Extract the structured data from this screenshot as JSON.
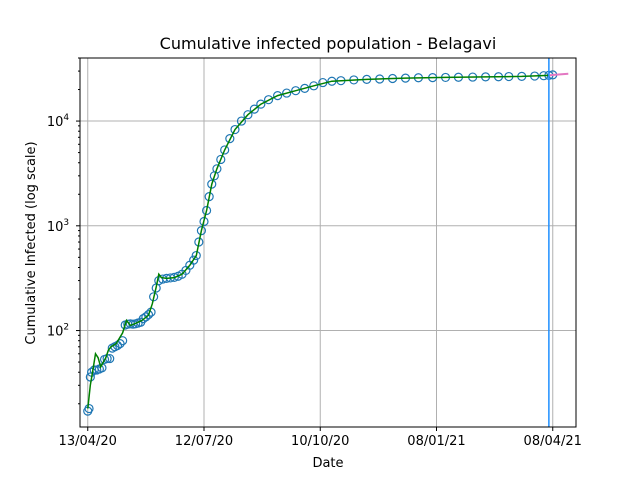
{
  "chart_data": {
    "type": "line",
    "title": "Cumulative infected population - Belagavi",
    "xlabel": "Date",
    "ylabel": "Cumulative Infected (log scale)",
    "yscale": "log",
    "ylim": [
      12,
      40000
    ],
    "xlim": [
      "2020-04-07",
      "2021-04-26"
    ],
    "x_ticks": [
      {
        "date": "2020-04-13",
        "label": "13/04/20"
      },
      {
        "date": "2020-07-12",
        "label": "12/07/20"
      },
      {
        "date": "2020-10-10",
        "label": "10/10/20"
      },
      {
        "date": "2021-01-08",
        "label": "08/01/21"
      },
      {
        "date": "2021-04-08",
        "label": "08/04/21"
      }
    ],
    "y_ticks": [
      {
        "value": 100,
        "base": "10",
        "exp": "2"
      },
      {
        "value": 1000,
        "base": "10",
        "exp": "3"
      },
      {
        "value": 10000,
        "base": "10",
        "exp": "4"
      }
    ],
    "grid": true,
    "vertical_marker": {
      "date": "2021-04-05",
      "color": "#1f8fff"
    },
    "colors": {
      "observed": "#1f77b4",
      "model": "#008000",
      "forecast": "#e377c2"
    },
    "series": [
      {
        "kind": "observed",
        "style": "open-circle",
        "points": [
          [
            "2020-04-13",
            17
          ],
          [
            "2020-04-14",
            18
          ],
          [
            "2020-04-15",
            36
          ],
          [
            "2020-04-16",
            40
          ],
          [
            "2020-04-18",
            42
          ],
          [
            "2020-04-20",
            42
          ],
          [
            "2020-04-22",
            43
          ],
          [
            "2020-04-24",
            44
          ],
          [
            "2020-04-26",
            53
          ],
          [
            "2020-04-28",
            54
          ],
          [
            "2020-04-30",
            54
          ],
          [
            "2020-05-02",
            68
          ],
          [
            "2020-05-04",
            70
          ],
          [
            "2020-05-06",
            72
          ],
          [
            "2020-05-08",
            75
          ],
          [
            "2020-05-10",
            80
          ],
          [
            "2020-05-12",
            113
          ],
          [
            "2020-05-14",
            115
          ],
          [
            "2020-05-16",
            116
          ],
          [
            "2020-05-18",
            115
          ],
          [
            "2020-05-20",
            116
          ],
          [
            "2020-05-22",
            118
          ],
          [
            "2020-05-24",
            120
          ],
          [
            "2020-05-26",
            130
          ],
          [
            "2020-05-28",
            135
          ],
          [
            "2020-05-30",
            142
          ],
          [
            "2020-06-01",
            150
          ],
          [
            "2020-06-03",
            210
          ],
          [
            "2020-06-05",
            255
          ],
          [
            "2020-06-07",
            300
          ],
          [
            "2020-06-10",
            310
          ],
          [
            "2020-06-13",
            315
          ],
          [
            "2020-06-16",
            318
          ],
          [
            "2020-06-19",
            322
          ],
          [
            "2020-06-22",
            330
          ],
          [
            "2020-06-25",
            345
          ],
          [
            "2020-06-28",
            375
          ],
          [
            "2020-07-01",
            420
          ],
          [
            "2020-07-04",
            470
          ],
          [
            "2020-07-06",
            520
          ],
          [
            "2020-07-08",
            700
          ],
          [
            "2020-07-10",
            900
          ],
          [
            "2020-07-12",
            1100
          ],
          [
            "2020-07-14",
            1400
          ],
          [
            "2020-07-16",
            1900
          ],
          [
            "2020-07-18",
            2500
          ],
          [
            "2020-07-20",
            3000
          ],
          [
            "2020-07-22",
            3500
          ],
          [
            "2020-07-25",
            4300
          ],
          [
            "2020-07-28",
            5300
          ],
          [
            "2020-08-01",
            6800
          ],
          [
            "2020-08-05",
            8300
          ],
          [
            "2020-08-10",
            10000
          ],
          [
            "2020-08-15",
            11500
          ],
          [
            "2020-08-20",
            13000
          ],
          [
            "2020-08-25",
            14500
          ],
          [
            "2020-08-31",
            16000
          ],
          [
            "2020-09-07",
            17500
          ],
          [
            "2020-09-14",
            18500
          ],
          [
            "2020-09-21",
            19500
          ],
          [
            "2020-09-28",
            20500
          ],
          [
            "2020-10-05",
            21700
          ],
          [
            "2020-10-12",
            23300
          ],
          [
            "2020-10-19",
            24000
          ],
          [
            "2020-10-26",
            24300
          ],
          [
            "2020-11-05",
            24700
          ],
          [
            "2020-11-15",
            25000
          ],
          [
            "2020-11-25",
            25200
          ],
          [
            "2020-12-05",
            25500
          ],
          [
            "2020-12-15",
            25700
          ],
          [
            "2020-12-25",
            25900
          ],
          [
            "2021-01-05",
            26000
          ],
          [
            "2021-01-15",
            26100
          ],
          [
            "2021-01-25",
            26200
          ],
          [
            "2021-02-05",
            26300
          ],
          [
            "2021-02-15",
            26400
          ],
          [
            "2021-02-25",
            26500
          ],
          [
            "2021-03-05",
            26600
          ],
          [
            "2021-03-15",
            26700
          ],
          [
            "2021-03-25",
            26900
          ],
          [
            "2021-04-01",
            27100
          ],
          [
            "2021-04-05",
            27300
          ],
          [
            "2021-04-08",
            27600
          ]
        ]
      },
      {
        "kind": "model",
        "style": "line",
        "points": [
          [
            "2020-04-13",
            18
          ],
          [
            "2020-04-15",
            30
          ],
          [
            "2020-04-17",
            42
          ],
          [
            "2020-04-19",
            60
          ],
          [
            "2020-04-21",
            55
          ],
          [
            "2020-04-23",
            45
          ],
          [
            "2020-04-25",
            50
          ],
          [
            "2020-04-27",
            55
          ],
          [
            "2020-04-29",
            65
          ],
          [
            "2020-05-01",
            70
          ],
          [
            "2020-05-05",
            75
          ],
          [
            "2020-05-10",
            95
          ],
          [
            "2020-05-13",
            125
          ],
          [
            "2020-05-16",
            112
          ],
          [
            "2020-05-20",
            117
          ],
          [
            "2020-05-25",
            125
          ],
          [
            "2020-05-30",
            140
          ],
          [
            "2020-06-02",
            180
          ],
          [
            "2020-06-05",
            260
          ],
          [
            "2020-06-07",
            345
          ],
          [
            "2020-06-09",
            320
          ],
          [
            "2020-06-13",
            315
          ],
          [
            "2020-06-19",
            320
          ],
          [
            "2020-06-25",
            345
          ],
          [
            "2020-07-01",
            420
          ],
          [
            "2020-07-06",
            520
          ],
          [
            "2020-07-10",
            900
          ],
          [
            "2020-07-14",
            1400
          ],
          [
            "2020-07-18",
            2500
          ],
          [
            "2020-07-22",
            3500
          ],
          [
            "2020-07-28",
            5300
          ],
          [
            "2020-08-05",
            8300
          ],
          [
            "2020-08-15",
            11500
          ],
          [
            "2020-08-25",
            14500
          ],
          [
            "2020-09-07",
            17500
          ],
          [
            "2020-09-21",
            19500
          ],
          [
            "2020-10-05",
            21700
          ],
          [
            "2020-10-19",
            24000
          ],
          [
            "2020-11-15",
            25000
          ],
          [
            "2020-12-15",
            25700
          ],
          [
            "2021-01-15",
            26100
          ],
          [
            "2021-02-15",
            26400
          ],
          [
            "2021-03-15",
            26700
          ],
          [
            "2021-04-05",
            27300
          ]
        ]
      },
      {
        "kind": "forecast",
        "style": "line",
        "points": [
          [
            "2021-04-05",
            27300
          ],
          [
            "2021-04-10",
            27700
          ],
          [
            "2021-04-15",
            28000
          ],
          [
            "2021-04-20",
            28300
          ]
        ]
      }
    ]
  }
}
